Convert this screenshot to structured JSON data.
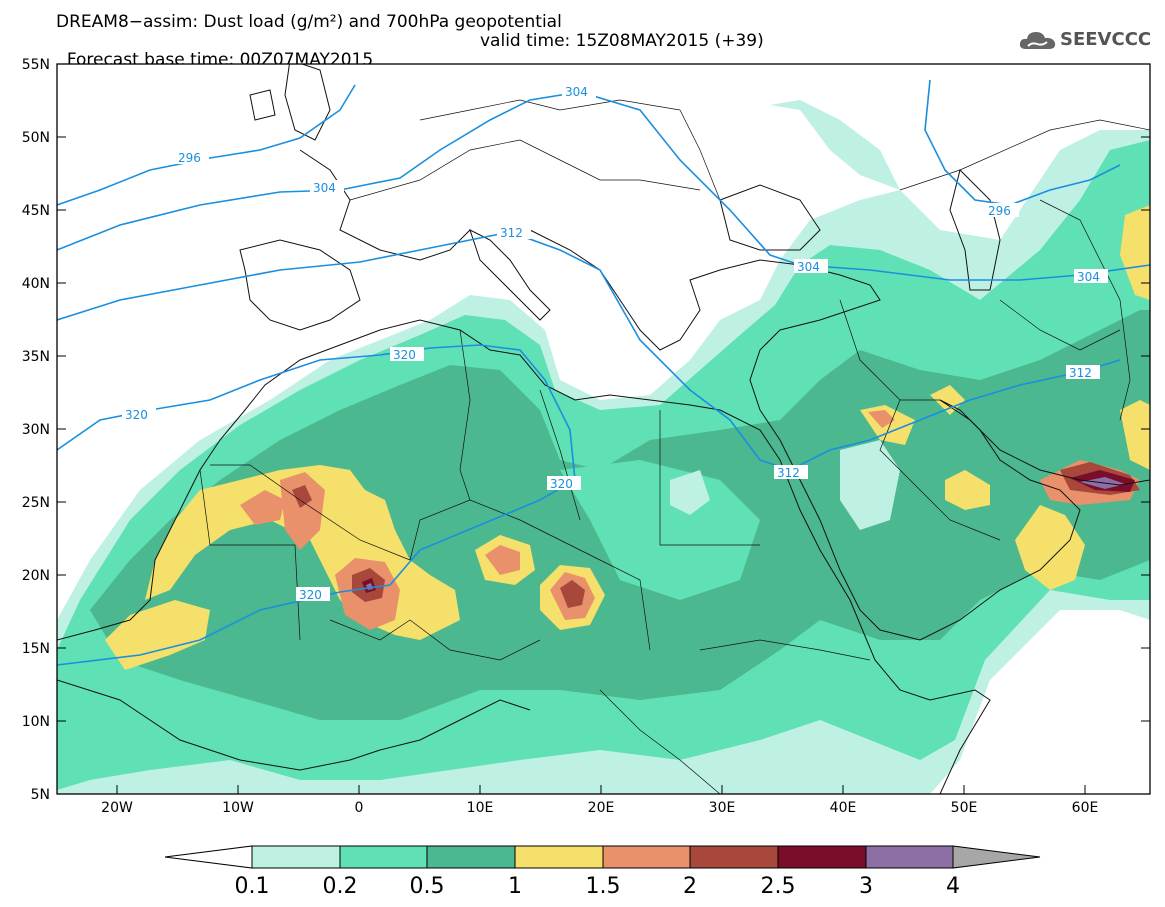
{
  "header": {
    "title_line1": "DREAM8−assim: Dust load (g/m²) and 700hPa geopotential",
    "title_line2_base": "Forecast base time: 00Z07MAY2015",
    "title_line2_valid": "valid time: 15Z08MAY2015 (+39)",
    "logo_text": "SEEVCCC"
  },
  "map": {
    "lat_labels": [
      "55N",
      "50N",
      "45N",
      "40N",
      "35N",
      "30N",
      "25N",
      "20N",
      "15N",
      "10N",
      "5N"
    ],
    "lon_labels": [
      "20W",
      "10W",
      "0",
      "10E",
      "20E",
      "30E",
      "40E",
      "50E",
      "60E"
    ],
    "contour_labels": [
      "296",
      "304",
      "304",
      "312",
      "320",
      "320",
      "320",
      "320",
      "312",
      "312",
      "304",
      "304",
      "296"
    ]
  },
  "legend": {
    "labels": [
      "0.1",
      "0.2",
      "0.5",
      "1",
      "1.5",
      "2",
      "2.5",
      "3",
      "4"
    ],
    "colors": {
      "0.1-0.2": "#bff0e4",
      "0.2-0.5": "#5fe0b5",
      "0.5-1": "#4cb88f",
      "1-1.5": "#f4e06b",
      "1.5-2": "#e8916a",
      "2-2.5": "#a8473c",
      "2.5-3": "#7a0e2a",
      "3-4": "#8e6fa5",
      "above-4": "#a7a7a7"
    }
  }
}
